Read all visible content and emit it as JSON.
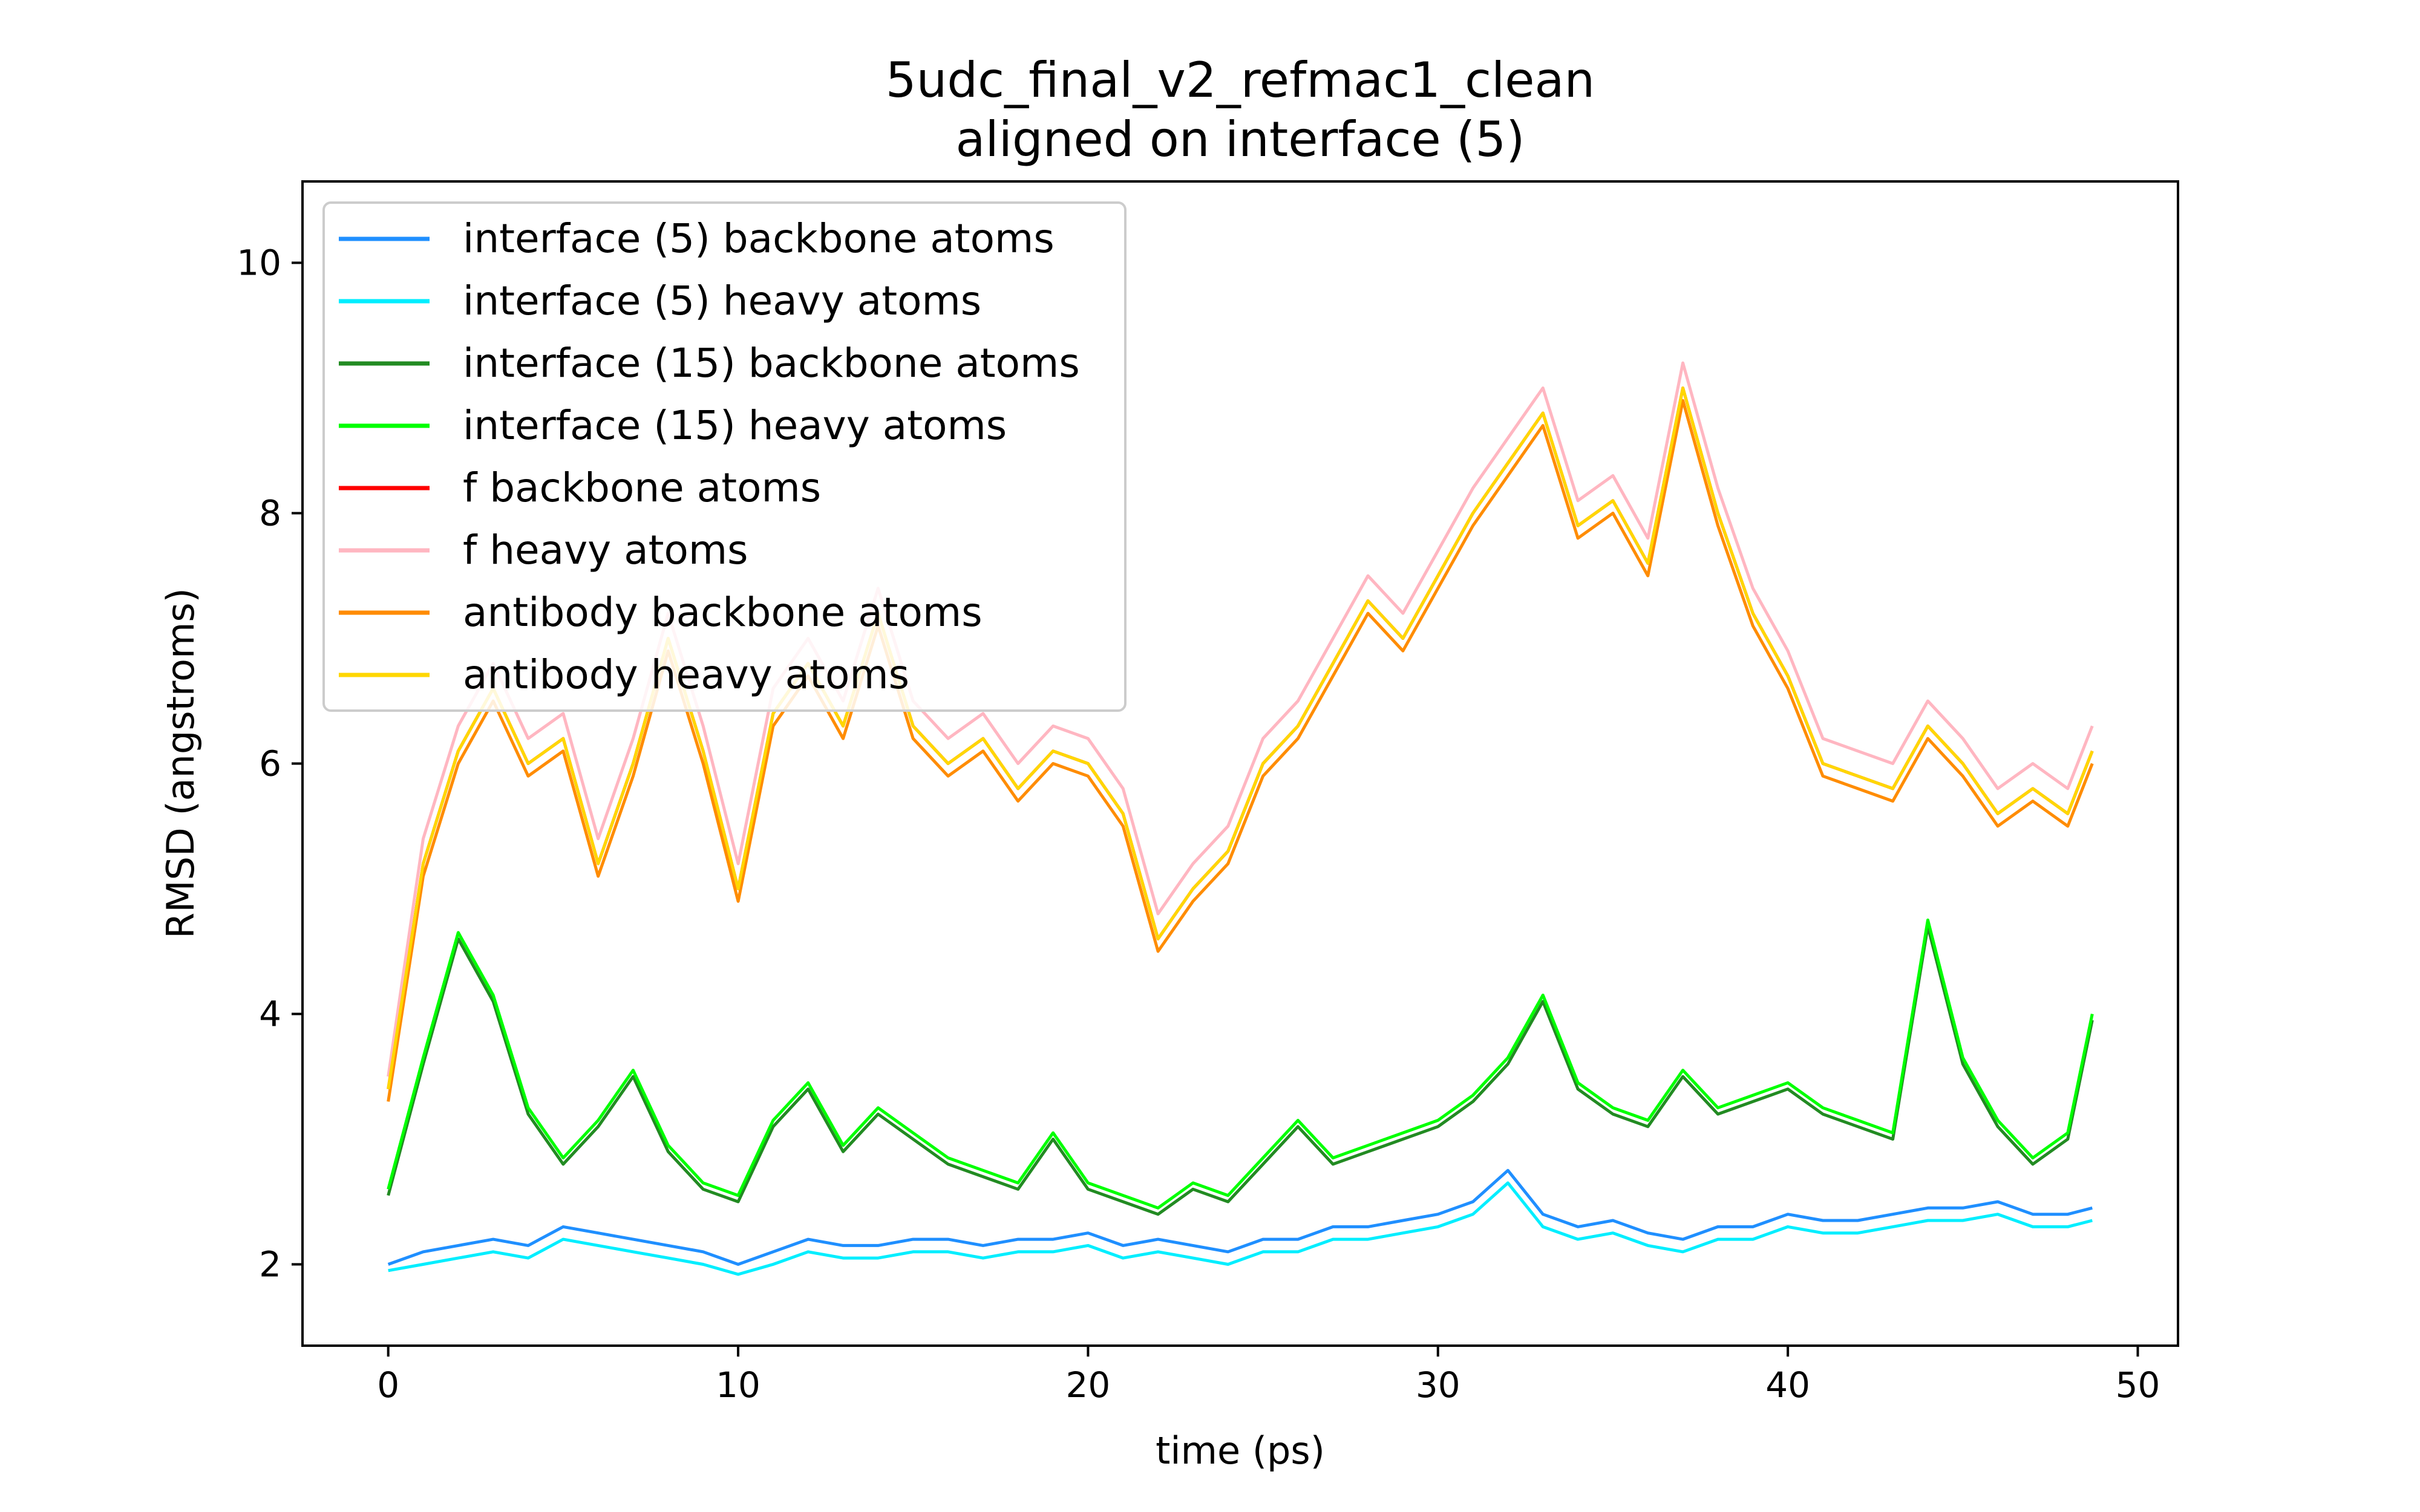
{
  "chart_data": {
    "type": "line",
    "title": "5udc_final_v2_refmac1_clean",
    "subtitle": "aligned on interface (5)",
    "xlabel": "time (ps)",
    "ylabel": "RMSD (angstroms)",
    "xlim": [
      -2.45,
      51.15
    ],
    "ylim": [
      1.35,
      10.65
    ],
    "xticks": [
      0,
      10,
      20,
      30,
      40,
      50
    ],
    "yticks": [
      2,
      4,
      6,
      8,
      10
    ],
    "grid": false,
    "legend_position": "top-left",
    "x": [
      0,
      1,
      2,
      3,
      4,
      5,
      6,
      7,
      8,
      9,
      10,
      11,
      12,
      13,
      14,
      15,
      16,
      17,
      18,
      19,
      20,
      21,
      22,
      23,
      24,
      25,
      26,
      27,
      28,
      29,
      30,
      31,
      32,
      33,
      34,
      35,
      36,
      37,
      38,
      39,
      40,
      41,
      42,
      43,
      44,
      45,
      46,
      47,
      48,
      48.7
    ],
    "series": [
      {
        "name": "interface (5) backbone atoms",
        "color": "#1f8fff",
        "values": [
          2.0,
          2.1,
          2.15,
          2.2,
          2.15,
          2.3,
          2.25,
          2.2,
          2.15,
          2.1,
          2.0,
          2.1,
          2.2,
          2.15,
          2.15,
          2.2,
          2.2,
          2.15,
          2.2,
          2.2,
          2.25,
          2.15,
          2.2,
          2.15,
          2.1,
          2.2,
          2.2,
          2.3,
          2.3,
          2.35,
          2.4,
          2.5,
          2.75,
          2.4,
          2.3,
          2.35,
          2.25,
          2.2,
          2.3,
          2.3,
          2.4,
          2.35,
          2.35,
          2.4,
          2.45,
          2.45,
          2.5,
          2.4,
          2.4,
          2.45
        ]
      },
      {
        "name": "interface (5) heavy atoms",
        "color": "#00eeff",
        "values": [
          1.95,
          2.0,
          2.05,
          2.1,
          2.05,
          2.2,
          2.15,
          2.1,
          2.05,
          2.0,
          1.92,
          2.0,
          2.1,
          2.05,
          2.05,
          2.1,
          2.1,
          2.05,
          2.1,
          2.1,
          2.15,
          2.05,
          2.1,
          2.05,
          2.0,
          2.1,
          2.1,
          2.2,
          2.2,
          2.25,
          2.3,
          2.4,
          2.65,
          2.3,
          2.2,
          2.25,
          2.15,
          2.1,
          2.2,
          2.2,
          2.3,
          2.25,
          2.25,
          2.3,
          2.35,
          2.35,
          2.4,
          2.3,
          2.3,
          2.35
        ]
      },
      {
        "name": "interface (15) backbone atoms",
        "color": "#228b22",
        "values": [
          2.55,
          3.6,
          4.6,
          4.1,
          3.2,
          2.8,
          3.1,
          3.5,
          2.9,
          2.6,
          2.5,
          3.1,
          3.4,
          2.9,
          3.2,
          3.0,
          2.8,
          2.7,
          2.6,
          3.0,
          2.6,
          2.5,
          2.4,
          2.6,
          2.5,
          2.8,
          3.1,
          2.8,
          2.9,
          3.0,
          3.1,
          3.3,
          3.6,
          4.1,
          3.4,
          3.2,
          3.1,
          3.5,
          3.2,
          3.3,
          3.4,
          3.2,
          3.1,
          3.0,
          4.7,
          3.6,
          3.1,
          2.8,
          3.0,
          3.95
        ]
      },
      {
        "name": "interface (15) heavy atoms",
        "color": "#00ff00",
        "values": [
          2.6,
          3.65,
          4.65,
          4.15,
          3.25,
          2.85,
          3.15,
          3.55,
          2.95,
          2.65,
          2.55,
          3.15,
          3.45,
          2.95,
          3.25,
          3.05,
          2.85,
          2.75,
          2.65,
          3.05,
          2.65,
          2.55,
          2.45,
          2.65,
          2.55,
          2.85,
          3.15,
          2.85,
          2.95,
          3.05,
          3.15,
          3.35,
          3.65,
          4.15,
          3.45,
          3.25,
          3.15,
          3.55,
          3.25,
          3.35,
          3.45,
          3.25,
          3.15,
          3.05,
          4.75,
          3.65,
          3.15,
          2.85,
          3.05,
          4.0
        ]
      },
      {
        "name": "f backbone atoms",
        "color": "#ff0000",
        "values": [
          3.4,
          5.2,
          6.1,
          6.6,
          6.0,
          6.2,
          5.2,
          6.0,
          7.0,
          6.1,
          5.0,
          6.4,
          6.8,
          6.3,
          7.2,
          6.3,
          6.0,
          6.2,
          5.8,
          6.1,
          6.0,
          5.6,
          4.6,
          5.0,
          5.3,
          6.0,
          6.3,
          6.8,
          7.3,
          7.0,
          7.5,
          8.0,
          8.4,
          8.8,
          7.9,
          8.1,
          7.6,
          9.0,
          8.0,
          7.2,
          6.7,
          6.0,
          5.9,
          5.8,
          6.3,
          6.0,
          5.6,
          5.8,
          5.6,
          6.1
        ]
      },
      {
        "name": "f heavy atoms",
        "color": "#ffb6c1",
        "values": [
          3.5,
          5.4,
          6.3,
          6.8,
          6.2,
          6.4,
          5.4,
          6.2,
          7.2,
          6.3,
          5.2,
          6.6,
          7.0,
          6.5,
          7.4,
          6.5,
          6.2,
          6.4,
          6.0,
          6.3,
          6.2,
          5.8,
          4.8,
          5.2,
          5.5,
          6.2,
          6.5,
          7.0,
          7.5,
          7.2,
          7.7,
          8.2,
          8.6,
          9.0,
          8.1,
          8.3,
          7.8,
          9.2,
          8.2,
          7.4,
          6.9,
          6.2,
          6.1,
          6.0,
          6.5,
          6.2,
          5.8,
          6.0,
          5.8,
          6.3
        ]
      },
      {
        "name": "antibody backbone atoms",
        "color": "#ff8c00",
        "values": [
          3.3,
          5.1,
          6.0,
          6.5,
          5.9,
          6.1,
          5.1,
          5.9,
          6.9,
          6.0,
          4.9,
          6.3,
          6.7,
          6.2,
          7.1,
          6.2,
          5.9,
          6.1,
          5.7,
          6.0,
          5.9,
          5.5,
          4.5,
          4.9,
          5.2,
          5.9,
          6.2,
          6.7,
          7.2,
          6.9,
          7.4,
          7.9,
          8.3,
          8.7,
          7.8,
          8.0,
          7.5,
          8.9,
          7.9,
          7.1,
          6.6,
          5.9,
          5.8,
          5.7,
          6.2,
          5.9,
          5.5,
          5.7,
          5.5,
          6.0
        ]
      },
      {
        "name": "antibody heavy atoms",
        "color": "#ffd700",
        "values": [
          3.4,
          5.2,
          6.1,
          6.6,
          6.0,
          6.2,
          5.2,
          6.0,
          7.0,
          6.1,
          5.0,
          6.4,
          6.8,
          6.3,
          7.2,
          6.3,
          6.0,
          6.2,
          5.8,
          6.1,
          6.0,
          5.6,
          4.6,
          5.0,
          5.3,
          6.0,
          6.3,
          6.8,
          7.3,
          7.0,
          7.5,
          8.0,
          8.4,
          8.8,
          7.9,
          8.1,
          7.6,
          9.0,
          8.0,
          7.2,
          6.7,
          6.0,
          5.9,
          5.8,
          6.3,
          6.0,
          5.6,
          5.8,
          5.6,
          6.1
        ]
      }
    ]
  }
}
